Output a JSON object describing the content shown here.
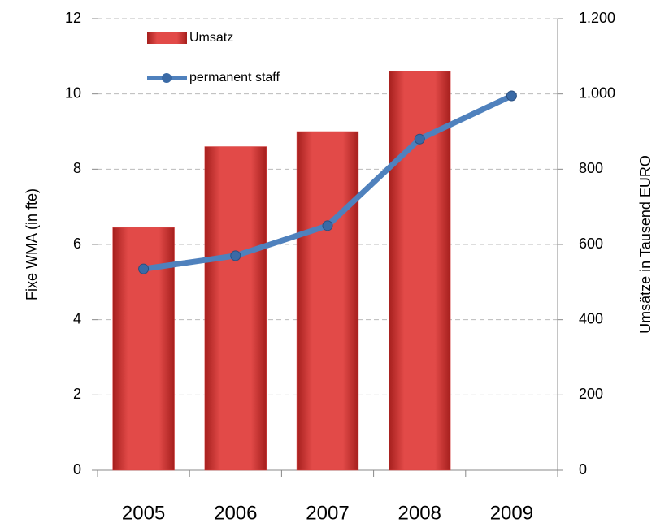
{
  "chart_data": {
    "type": "bar",
    "categories": [
      "2005",
      "2006",
      "2007",
      "2008",
      "2009"
    ],
    "series": [
      {
        "name": "Umsatz",
        "type": "bar",
        "color": "#d9403f",
        "axis": "y2",
        "values": [
          645,
          860,
          900,
          1060,
          null
        ]
      },
      {
        "name": "permanent staff",
        "type": "line",
        "color": "#4f81bd",
        "axis": "y",
        "values": [
          5.35,
          5.7,
          6.5,
          8.8,
          9.95
        ]
      }
    ],
    "ylabel": "Fixe WMA (in fte)",
    "y2label": "Umsätze in Tausend EURO",
    "ylim": [
      0,
      12
    ],
    "yticks": [
      0,
      2,
      4,
      6,
      8,
      10,
      12
    ],
    "y2lim": [
      0,
      1200
    ],
    "y2ticks": [
      0,
      200,
      400,
      600,
      800,
      {
        "value": 1000,
        "label": "1.000"
      },
      {
        "value": 1200,
        "label": "1.200"
      }
    ],
    "grid": true,
    "legend": "upper left"
  }
}
